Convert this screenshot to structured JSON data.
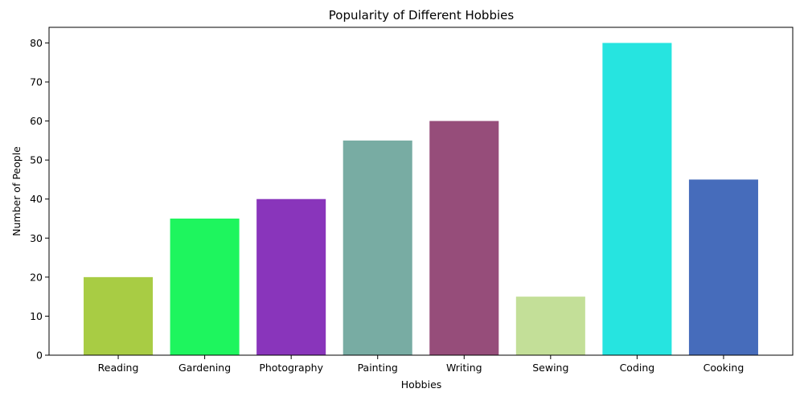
{
  "chart_data": {
    "type": "bar",
    "title": "Popularity of Different Hobbies",
    "xlabel": "Hobbies",
    "ylabel": "Number of People",
    "categories": [
      "Reading",
      "Gardening",
      "Photography",
      "Painting",
      "Writing",
      "Sewing",
      "Coding",
      "Cooking"
    ],
    "values": [
      20,
      35,
      40,
      55,
      60,
      15,
      80,
      45
    ],
    "colors": [
      "#a8cc44",
      "#1ef55e",
      "#8935bb",
      "#78aca3",
      "#964d7a",
      "#c3df98",
      "#26e4e0",
      "#466cbb"
    ],
    "ylim": [
      0,
      84
    ],
    "yticks": [
      0,
      10,
      20,
      30,
      40,
      50,
      60,
      70,
      80
    ],
    "grid": false,
    "legend": "none"
  }
}
